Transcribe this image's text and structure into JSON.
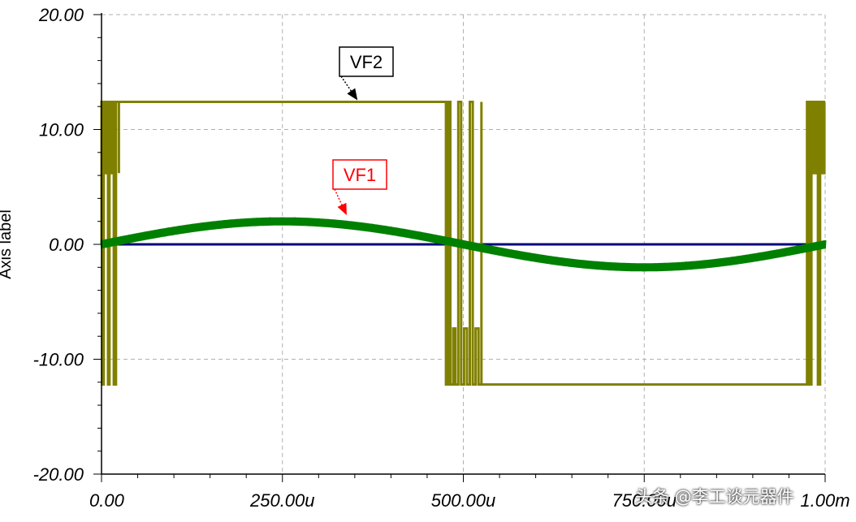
{
  "chart_data": {
    "type": "line",
    "ylabel": "Axis label",
    "ylim": [
      -20,
      20
    ],
    "xlim": [
      0,
      1000
    ],
    "x_unit": "u",
    "grid": true,
    "y_ticks": [
      {
        "value": 20,
        "label": "20.00"
      },
      {
        "value": 10,
        "label": "10.00"
      },
      {
        "value": 0,
        "label": "0.00"
      },
      {
        "value": -10,
        "label": "-10.00"
      },
      {
        "value": -20,
        "label": "-20.00"
      }
    ],
    "x_ticks": [
      {
        "value": 0,
        "label": "0.00"
      },
      {
        "value": 250,
        "label": "250.00u"
      },
      {
        "value": 500,
        "label": "500.00u"
      },
      {
        "value": 750,
        "label": "750.00u"
      },
      {
        "value": 1000,
        "label": "1.00m"
      }
    ],
    "series": [
      {
        "name": "VF2",
        "kind": "square",
        "color": "#808000",
        "high": 12.4,
        "low": -12.2,
        "transitions": [
          {
            "at": 0,
            "to": "high",
            "chatter": [
              0,
              1,
              3,
              5,
              7,
              9,
              11,
              13,
              15,
              17,
              20,
              24
            ]
          },
          {
            "at": 476,
            "to": "low",
            "chatter": [
              476,
              479,
              482,
              486,
              489,
              493,
              497,
              501,
              505,
              509,
              513,
              517,
              521,
              525
            ]
          },
          {
            "at": 985,
            "to": "high",
            "chatter": [
              975,
              978,
              981,
              984,
              987,
              990,
              993,
              996,
              999
            ]
          }
        ]
      },
      {
        "name": "VF1",
        "kind": "sine",
        "color": "#008000",
        "amplitude": 2.0,
        "period": 1000,
        "ripple": 0.35
      },
      {
        "name": "",
        "kind": "flat",
        "color": "#000080",
        "value": 0
      }
    ],
    "callouts": [
      {
        "text": "VF2",
        "color": "#000000",
        "border": "#000000",
        "points_to": {
          "x": 365,
          "y": 12.4
        }
      },
      {
        "text": "VF1",
        "color": "#ff0000",
        "border": "#ff0000",
        "points_to": {
          "x": 350,
          "y": 2.4
        }
      }
    ]
  },
  "watermark": "头条 @李工谈元器件"
}
